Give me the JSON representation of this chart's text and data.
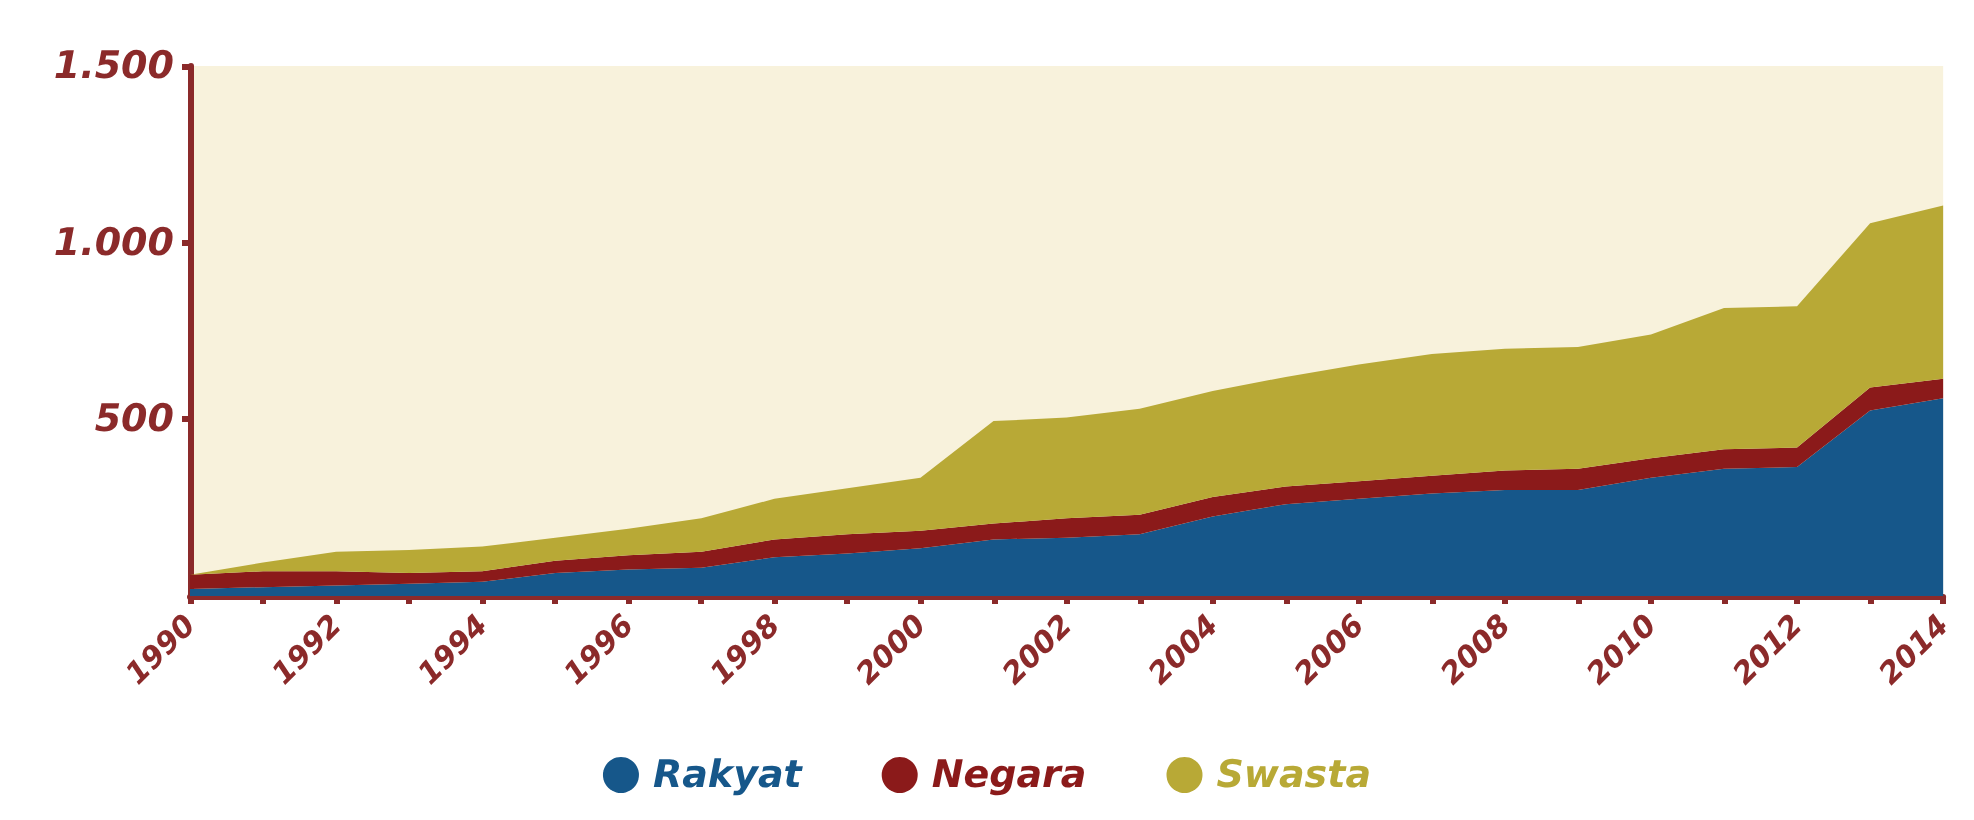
{
  "chart_data": {
    "type": "area",
    "stacked": true,
    "categories": [
      "1990",
      null,
      "1992",
      null,
      "1994",
      null,
      "1996",
      null,
      "1998",
      null,
      "2000",
      null,
      "2002",
      null,
      "2004",
      null,
      "2006",
      null,
      "2008",
      null,
      "2010",
      null,
      "2012",
      null,
      "2014"
    ],
    "series": [
      {
        "name": "Rakyat",
        "color": "#16578a",
        "values": [
          20,
          25,
          30,
          35,
          40,
          65,
          75,
          80,
          110,
          120,
          135,
          160,
          165,
          175,
          225,
          260,
          275,
          290,
          300,
          300,
          335,
          360,
          365,
          525,
          560
        ]
      },
      {
        "name": "Negara",
        "color": "#8b1a1a",
        "values": [
          40,
          45,
          40,
          30,
          30,
          35,
          40,
          45,
          50,
          55,
          50,
          45,
          55,
          55,
          55,
          50,
          50,
          50,
          55,
          60,
          55,
          55,
          55,
          65,
          55
        ]
      },
      {
        "name": "Swasta",
        "color": "#b8a936",
        "values": [
          0,
          25,
          55,
          65,
          70,
          65,
          75,
          95,
          115,
          130,
          150,
          290,
          285,
          300,
          300,
          310,
          330,
          345,
          345,
          345,
          350,
          400,
          400,
          465,
          490
        ]
      }
    ],
    "ylim": [
      0,
      1500
    ],
    "yticks": [
      500,
      {
        "value": 1000,
        "label": "1.000"
      },
      {
        "value": 1500,
        "label": "1.500"
      }
    ],
    "grid": false,
    "legend": "bottom"
  }
}
